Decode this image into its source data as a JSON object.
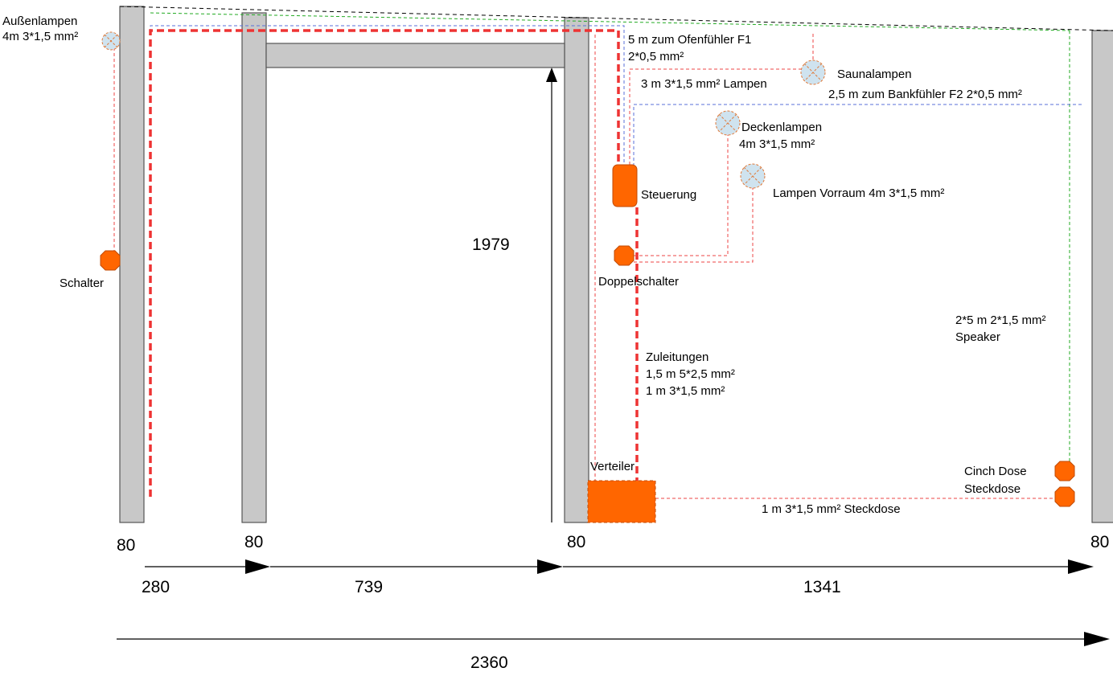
{
  "labels": {
    "aussenlampen_1": "Außenlampen",
    "aussenlampen_2": "4m 3*1,5 mm²",
    "schalter": "Schalter",
    "ofenfuehler_1": "5 m zum Ofenfühler F1",
    "ofenfuehler_2": "2*0,5 mm²",
    "lampen_3m": "3 m 3*1,5 mm² Lampen",
    "saunalampen": "Saunalampen",
    "bankfuehler": "2,5 m zum Bankfühler F2 2*0,5 mm²",
    "deckenlampen_1": "Deckenlampen",
    "deckenlampen_2": "4m 3*1,5 mm²",
    "steuerung": "Steuerung",
    "lampen_vorraum": "Lampen Vorraum 4m 3*1,5 mm²",
    "doppelschalter": "Doppelschalter",
    "zuleitungen_1": "Zuleitungen",
    "zuleitungen_2": "1,5 m 5*2,5 mm²",
    "zuleitungen_3": "1 m 3*1,5 mm²",
    "speaker_1": "2*5 m 2*1,5 mm²",
    "speaker_2": "Speaker",
    "cinch": "Cinch Dose",
    "steckdose": "Steckdose",
    "steckdose_line": "1 m 3*1,5 mm² Steckdose",
    "verteiler": "Verteiler"
  },
  "dimensions": {
    "height": "1979",
    "wall_1": "80",
    "wall_2": "80",
    "wall_3": "80",
    "wall_4": "80",
    "span_1": "280",
    "span_2": "739",
    "span_3": "1341",
    "total": "2360"
  },
  "colors": {
    "wall": "#c8c8c8",
    "device": "#ff6600",
    "lamp": "#cfe3ef",
    "power_line": "#ee3333",
    "sensor_line": "#5a6fd8",
    "speaker_line": "#22aa22"
  }
}
